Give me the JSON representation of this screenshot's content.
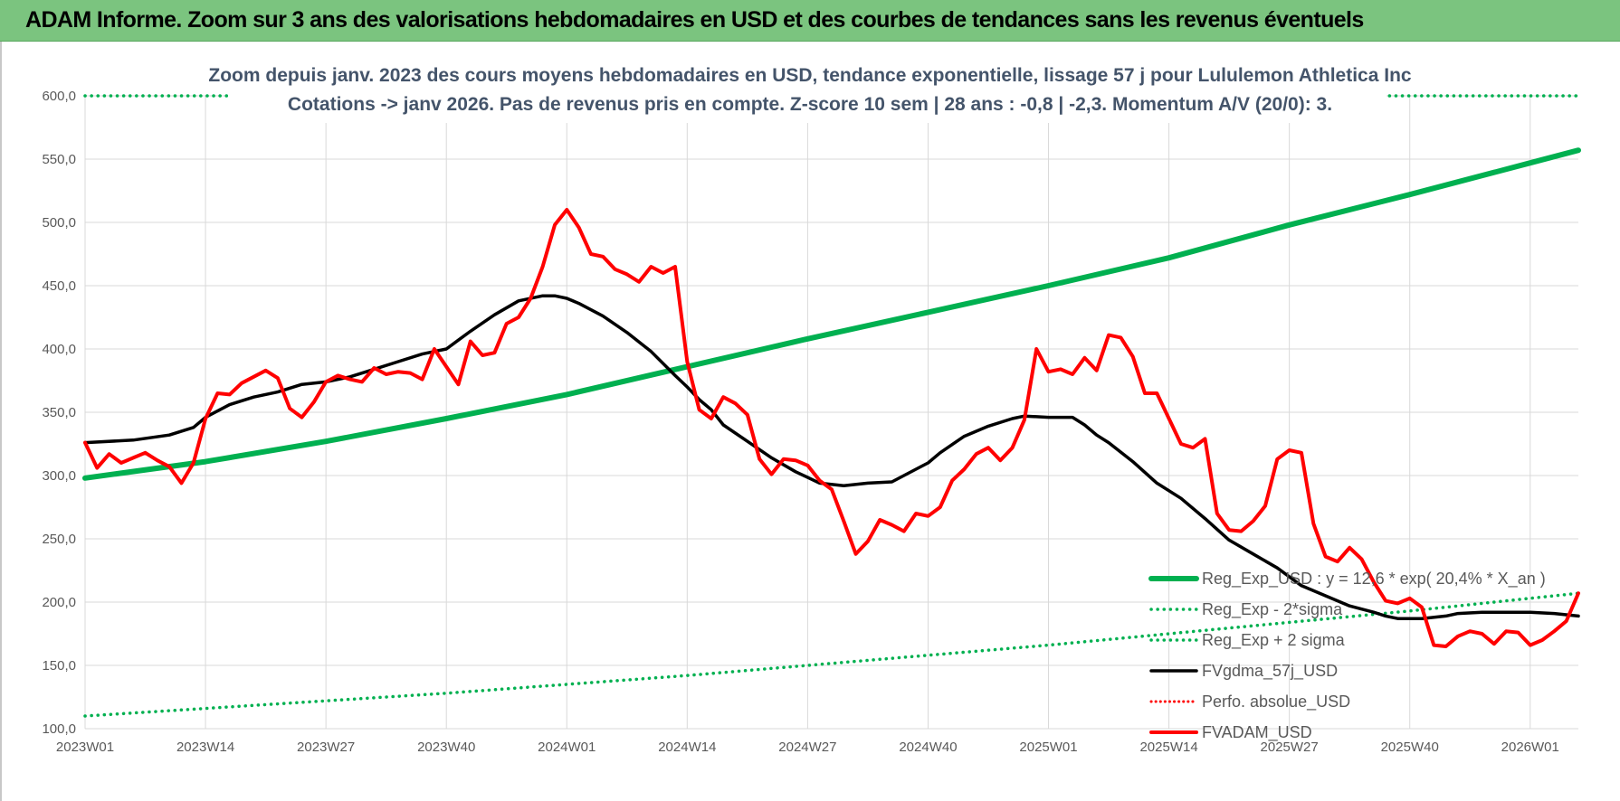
{
  "header": {
    "title": "ADAM Informe. Zoom sur 3 ans des valorisations hebdomadaires en USD et des courbes de tendances sans les revenus éventuels"
  },
  "colors": {
    "banner": "#7bc47f",
    "reg": "#00b050",
    "band": "#00b050",
    "fvgdma": "#000000",
    "perfo": "#ff0000",
    "fvadam": "#ff0000",
    "grid": "#d9d9d9"
  },
  "chart_data": {
    "type": "line",
    "title_lines": [
      "Zoom depuis janv. 2023 des cours moyens hebdomadaires en USD, tendance exponentielle, lissage 57 j pour Lululemon Athletica Inc",
      "Cotations -> janv 2026. Pas de revenus pris en compte. Z-score 10 sem | 28 ans : -0,8 | -2,3. Momentum A/V (20/0): 3."
    ],
    "xlabel": "",
    "ylabel": "",
    "ylim": [
      100,
      600
    ],
    "yticks": [
      "600,0",
      "550,0",
      "500,0",
      "450,0",
      "400,0",
      "350,0",
      "300,0",
      "250,0",
      "200,0",
      "150,0",
      "100,0"
    ],
    "ytick_values": [
      600,
      550,
      500,
      450,
      400,
      350,
      300,
      250,
      200,
      150,
      100
    ],
    "x_range": [
      0,
      124
    ],
    "xticks": [
      {
        "label": "2023W01",
        "x": 0
      },
      {
        "label": "2023W14",
        "x": 10
      },
      {
        "label": "2023W27",
        "x": 20
      },
      {
        "label": "2023W40",
        "x": 30
      },
      {
        "label": "2024W01",
        "x": 40
      },
      {
        "label": "2024W14",
        "x": 50
      },
      {
        "label": "2024W27",
        "x": 60
      },
      {
        "label": "2024W40",
        "x": 70
      },
      {
        "label": "2025W01",
        "x": 80
      },
      {
        "label": "2025W14",
        "x": 90
      },
      {
        "label": "2025W27",
        "x": 100
      },
      {
        "label": "2025W40",
        "x": 110
      },
      {
        "label": "2026W01",
        "x": 120
      }
    ],
    "legend": [
      {
        "name": "Reg_Exp_USD : y = 12,6 * exp( 20,4% *  X_an )",
        "style": "thick-solid-green"
      },
      {
        "name": "Reg_Exp - 2*sigma",
        "style": "dotted-green"
      },
      {
        "name": "Reg_Exp + 2 sigma",
        "style": "dotted-green"
      },
      {
        "name": "FVgdma_57j_USD",
        "style": "solid-black"
      },
      {
        "name": "Perfo. absolue_USD",
        "style": "dotted-red"
      },
      {
        "name": "FVADAM_USD",
        "style": "solid-red"
      }
    ],
    "series": [
      {
        "name": "Reg_Exp_USD",
        "x": [
          0,
          10,
          20,
          30,
          40,
          50,
          60,
          70,
          80,
          90,
          100,
          110,
          120,
          124
        ],
        "values": [
          298,
          311,
          327,
          345,
          364,
          386,
          408,
          429,
          450,
          472,
          498,
          522,
          547,
          557
        ]
      },
      {
        "name": "Reg_Exp - 2*sigma",
        "x": [
          0,
          10,
          20,
          30,
          40,
          50,
          60,
          70,
          80,
          90,
          100,
          110,
          120,
          124
        ],
        "values": [
          110,
          116,
          122,
          128,
          135,
          142,
          150,
          158,
          166,
          175,
          184,
          193,
          203,
          207
        ]
      },
      {
        "name": "Reg_Exp + 2 sigma",
        "x": [
          0,
          12,
          107,
          124
        ],
        "values": [
          600,
          600,
          600,
          600
        ]
      },
      {
        "name": "FVgdma_57j_USD",
        "x": [
          0,
          4,
          7,
          9,
          10,
          12,
          14,
          16,
          18,
          20,
          22,
          24,
          26,
          28,
          30,
          32,
          34,
          36,
          38,
          39,
          40,
          41,
          43,
          45,
          47,
          49,
          50,
          51,
          52,
          53,
          55,
          57,
          59,
          61,
          63,
          65,
          67,
          68,
          69,
          70,
          71,
          73,
          75,
          77,
          78,
          80,
          82,
          83,
          84,
          85,
          87,
          89,
          91,
          93,
          95,
          97,
          99,
          101,
          103,
          105,
          107,
          108,
          109,
          111,
          113,
          114,
          116,
          118,
          120,
          122,
          124
        ],
        "values": [
          326,
          328,
          332,
          338,
          346,
          356,
          362,
          366,
          372,
          374,
          378,
          384,
          390,
          396,
          400,
          414,
          427,
          438,
          442,
          442,
          440,
          436,
          426,
          413,
          398,
          379,
          370,
          360,
          352,
          340,
          327,
          314,
          303,
          294,
          292,
          294,
          295,
          300,
          305,
          310,
          318,
          331,
          339,
          345,
          347,
          346,
          346,
          340,
          332,
          326,
          311,
          294,
          282,
          266,
          249,
          238,
          227,
          213,
          205,
          197,
          192,
          189,
          187,
          187,
          189,
          191,
          192,
          192,
          192,
          191,
          189
        ]
      },
      {
        "name": "FVADAM_USD",
        "x": [
          0,
          1,
          2,
          3,
          4,
          5,
          6,
          7,
          8,
          9,
          10,
          11,
          12,
          13,
          14,
          15,
          16,
          17,
          18,
          19,
          20,
          21,
          22,
          23,
          24,
          25,
          26,
          27,
          28,
          29,
          30,
          31,
          32,
          33,
          34,
          35,
          36,
          37,
          38,
          39,
          40,
          41,
          42,
          43,
          44,
          45,
          46,
          47,
          48,
          49,
          50,
          51,
          52,
          53,
          54,
          55,
          56,
          57,
          58,
          59,
          60,
          61,
          62,
          63,
          64,
          65,
          66,
          67,
          68,
          69,
          70,
          71,
          72,
          73,
          74,
          75,
          76,
          77,
          78,
          79,
          80,
          81,
          82,
          83,
          84,
          85,
          86,
          87,
          88,
          89,
          90,
          91,
          92,
          93,
          94,
          95,
          96,
          97,
          98,
          99,
          100,
          101,
          102,
          103,
          104,
          105,
          106,
          107,
          108,
          109,
          110,
          111,
          112,
          113,
          114,
          115,
          116,
          117,
          118,
          119,
          120,
          121,
          122,
          123,
          124
        ],
        "values": [
          326,
          306,
          317,
          310,
          314,
          318,
          312,
          307,
          294,
          310,
          345,
          365,
          364,
          373,
          378,
          383,
          377,
          353,
          346,
          358,
          374,
          379,
          376,
          374,
          385,
          380,
          382,
          381,
          376,
          400,
          386,
          372,
          406,
          395,
          397,
          420,
          425,
          440,
          465,
          498,
          510,
          496,
          475,
          473,
          463,
          459,
          453,
          465,
          460,
          465,
          390,
          352,
          345,
          362,
          357,
          348,
          313,
          301,
          313,
          312,
          308,
          296,
          289,
          264,
          238,
          248,
          265,
          261,
          256,
          270,
          268,
          275,
          296,
          305,
          317,
          322,
          312,
          322,
          344,
          400,
          382,
          384,
          380,
          393,
          383,
          411,
          409,
          394,
          365,
          365,
          345,
          325,
          322,
          329,
          270,
          257,
          256,
          264,
          276,
          313,
          320,
          318,
          262,
          236,
          232,
          243,
          234,
          216,
          201,
          199,
          203,
          196,
          166,
          165,
          173,
          177,
          175,
          167,
          177,
          176,
          166,
          170,
          177,
          185,
          207
        ]
      }
    ]
  }
}
